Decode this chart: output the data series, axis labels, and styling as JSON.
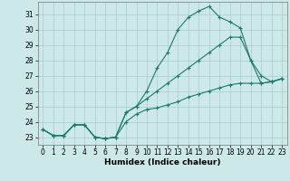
{
  "title": "",
  "xlabel": "Humidex (Indice chaleur)",
  "bg_color": "#cce8e8",
  "grid_color": "#aacccc",
  "line_color": "#1a7a6a",
  "x_values": [
    0,
    1,
    2,
    3,
    4,
    5,
    6,
    7,
    8,
    9,
    10,
    11,
    12,
    13,
    14,
    15,
    16,
    17,
    18,
    19,
    20,
    21,
    22,
    23
  ],
  "series1": [
    23.5,
    23.1,
    23.1,
    23.8,
    23.8,
    23.0,
    22.9,
    23.0,
    24.6,
    25.0,
    26.0,
    27.5,
    28.5,
    30.0,
    30.8,
    31.2,
    31.5,
    30.8,
    30.5,
    30.1,
    28.0,
    26.5,
    26.6,
    26.8
  ],
  "series2": [
    23.5,
    23.1,
    23.1,
    23.8,
    23.8,
    23.0,
    22.9,
    23.0,
    24.6,
    25.0,
    25.5,
    26.0,
    26.5,
    27.0,
    27.5,
    28.0,
    28.5,
    29.0,
    29.5,
    29.5,
    28.0,
    27.0,
    26.6,
    26.8
  ],
  "series3": [
    23.5,
    23.1,
    23.1,
    23.8,
    23.8,
    23.0,
    22.9,
    23.0,
    24.0,
    24.5,
    24.8,
    24.9,
    25.1,
    25.3,
    25.6,
    25.8,
    26.0,
    26.2,
    26.4,
    26.5,
    26.5,
    26.5,
    26.6,
    26.8
  ],
  "ylim": [
    22.5,
    31.8
  ],
  "yticks": [
    23,
    24,
    25,
    26,
    27,
    28,
    29,
    30,
    31
  ],
  "xlim": [
    -0.5,
    23.5
  ],
  "xticks": [
    0,
    1,
    2,
    3,
    4,
    5,
    6,
    7,
    8,
    9,
    10,
    11,
    12,
    13,
    14,
    15,
    16,
    17,
    18,
    19,
    20,
    21,
    22,
    23
  ],
  "tick_fontsize": 5.5,
  "xlabel_fontsize": 6.5
}
